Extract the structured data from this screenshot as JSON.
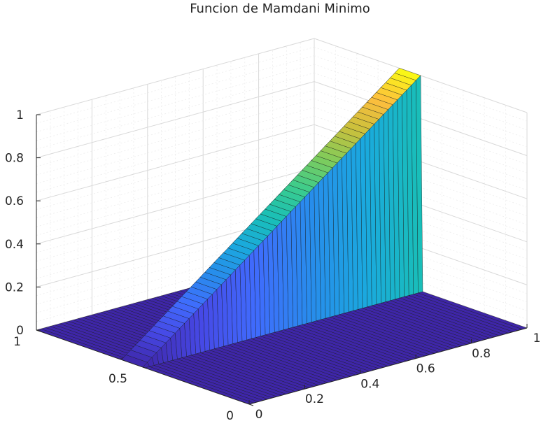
{
  "chart_data": {
    "type": "surface",
    "title": "Funcion de Mamdani Minimo",
    "xlabel": "",
    "ylabel": "",
    "zlabel": "",
    "xlim": [
      0,
      1
    ],
    "ylim": [
      0,
      1
    ],
    "zlim": [
      0,
      1
    ],
    "x_ticks": [
      0,
      0.2,
      0.4,
      0.6,
      0.8,
      1
    ],
    "x_tick_labels": [
      "0",
      "0.2",
      "0.4",
      "0.6",
      "0.8",
      "1"
    ],
    "y_ticks": [
      0,
      0.5,
      1
    ],
    "y_tick_labels": [
      "0",
      "0.5",
      "1"
    ],
    "z_ticks": [
      0,
      0.2,
      0.4,
      0.6,
      0.8,
      1
    ],
    "z_tick_labels": [
      "0",
      "0.2",
      "0.4",
      "0.6",
      "0.8",
      "1"
    ],
    "grid": true,
    "colormap": "parula",
    "surface": {
      "description_x": "membership rises linearly with x from 0 to 1",
      "ridge_y": [
        0.5,
        0.6
      ],
      "z_at_ridge": "z = x",
      "z_elsewhere": 0
    }
  }
}
